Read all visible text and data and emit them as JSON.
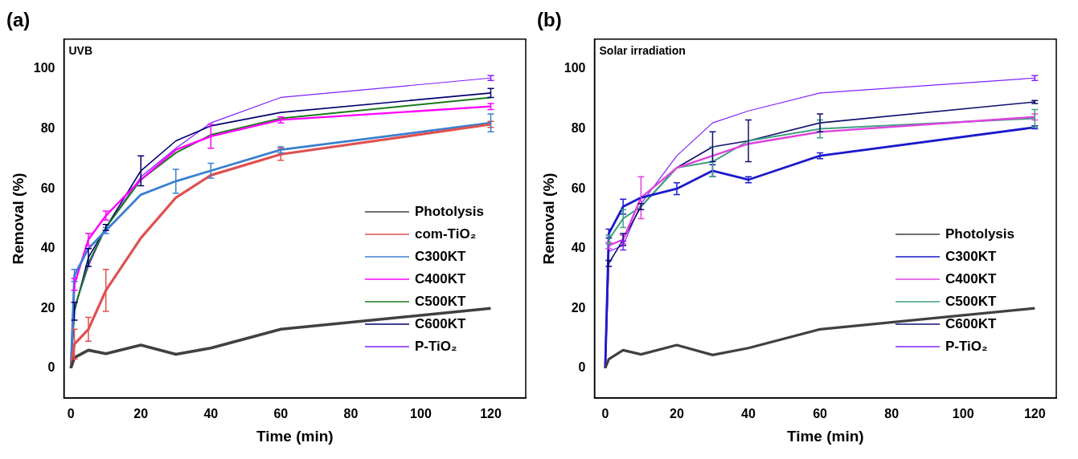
{
  "chart_data": [
    {
      "type": "line",
      "title": "(a)",
      "xlabel": "Time (min)",
      "ylabel": "Removal (%)",
      "annotations": [
        "UVB"
      ],
      "x": [
        0,
        1,
        5,
        10,
        20,
        30,
        40,
        60,
        120
      ],
      "xlim": [
        -2,
        130
      ],
      "xticks": [
        0,
        20,
        40,
        60,
        80,
        100,
        120
      ],
      "ylim": [
        -10,
        110
      ],
      "yticks": [
        0,
        20,
        40,
        60,
        80,
        100
      ],
      "grid": false,
      "legend": "bottom right",
      "marker": "none",
      "line_style": "solid",
      "series": [
        {
          "name": "Photolysis",
          "color": "#404040",
          "values": [
            0,
            3.5,
            6,
            4.8,
            7.7,
            4.6,
            6.7,
            13,
            20
          ]
        },
        {
          "name": "com-TiO₂",
          "color": "#e05050",
          "values": [
            0,
            8,
            13,
            26,
            43.5,
            57,
            64.5,
            71.5,
            81.5
          ],
          "errors": [
            null,
            5,
            4,
            7,
            null,
            null,
            null,
            2,
            1
          ]
        },
        {
          "name": "C300KT",
          "color": "#3a7fd0",
          "values": [
            0,
            31,
            40,
            46,
            58,
            62.5,
            66,
            73,
            82
          ],
          "errors": [
            null,
            2,
            null,
            1,
            null,
            4,
            2.5,
            1,
            3
          ]
        },
        {
          "name": "C400KT",
          "color": "#ff00ff",
          "values": [
            0,
            28,
            43,
            51,
            63,
            73,
            77.5,
            83,
            87.5
          ],
          "errors": [
            null,
            2,
            2,
            1.5,
            null,
            null,
            4,
            1,
            1
          ]
        },
        {
          "name": "C500KT",
          "color": "#1a7a1a",
          "values": [
            0,
            20,
            35,
            47,
            63,
            72,
            78,
            83.5,
            90.5
          ]
        },
        {
          "name": "C600KT",
          "color": "#00006e",
          "values": [
            0,
            19,
            37,
            47,
            66,
            76,
            81,
            85.5,
            92
          ],
          "errors": [
            null,
            3,
            3,
            1,
            5,
            null,
            null,
            null,
            1.5
          ]
        },
        {
          "name": "P-TiO₂",
          "color": "#7f1fff",
          "values": [
            0,
            20,
            34,
            47,
            64,
            73.5,
            82,
            90.5,
            97
          ],
          "errors": [
            null,
            null,
            null,
            null,
            null,
            null,
            null,
            null,
            0.8
          ]
        }
      ]
    },
    {
      "type": "line",
      "title": "(b)",
      "xlabel": "Time (min)",
      "ylabel": "Removal (%)",
      "annotations": [
        "Solar irradiation"
      ],
      "x": [
        0,
        1,
        5,
        10,
        20,
        30,
        40,
        60,
        120
      ],
      "xlim": [
        -3,
        126
      ],
      "xticks": [
        0,
        20,
        40,
        60,
        80,
        100,
        120
      ],
      "ylim": [
        -10,
        110
      ],
      "yticks": [
        0,
        20,
        40,
        60,
        80,
        100
      ],
      "grid": false,
      "legend": "bottom right",
      "marker": "none",
      "line_style": "solid",
      "series": [
        {
          "name": "Photolysis",
          "color": "#404040",
          "values": [
            0,
            3,
            6,
            4.6,
            7.7,
            4.4,
            6.7,
            13,
            20
          ]
        },
        {
          "name": "C300KT",
          "color": "#1a1acc",
          "values": [
            0,
            45,
            54,
            57,
            60,
            66,
            63,
            71,
            80.5
          ],
          "errors": [
            null,
            1.5,
            2.5,
            null,
            2,
            2,
            1,
            1,
            0.5
          ]
        },
        {
          "name": "C400KT",
          "color": "#e040e0",
          "values": [
            0,
            41,
            43,
            57,
            67,
            71,
            75,
            79,
            84
          ],
          "errors": [
            null,
            1,
            1.5,
            7,
            null,
            null,
            null,
            null,
            1
          ]
        },
        {
          "name": "C500KT",
          "color": "#40a080",
          "values": [
            0,
            43,
            50,
            54,
            67,
            69,
            76,
            80,
            83.5
          ],
          "errors": [
            null,
            1.5,
            3,
            null,
            null,
            5,
            null,
            3,
            3
          ]
        },
        {
          "name": "C600KT",
          "color": "#101070",
          "values": [
            0,
            35,
            43,
            54,
            67,
            74,
            76,
            82,
            89
          ],
          "errors": [
            null,
            1,
            2,
            1,
            null,
            5,
            7,
            3,
            0.5
          ]
        },
        {
          "name": "P-TiO₂",
          "color": "#8020ff",
          "values": [
            0,
            39,
            41,
            55,
            71,
            82,
            86,
            92,
            97
          ],
          "errors": [
            null,
            null,
            1.5,
            null,
            null,
            null,
            null,
            null,
            0.8
          ]
        }
      ]
    }
  ]
}
